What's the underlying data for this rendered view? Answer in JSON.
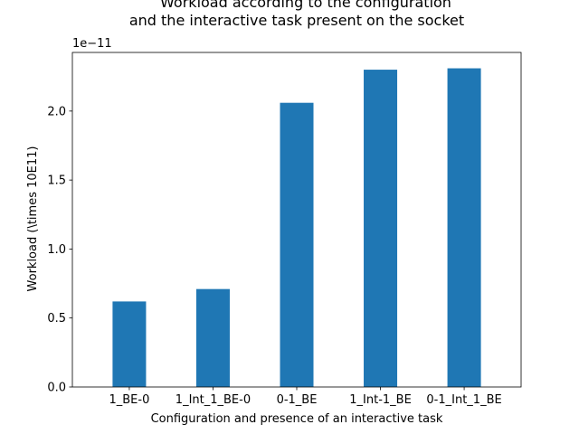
{
  "chart_data": {
    "type": "bar",
    "title_lines": [
      "Workload according  to the configuration",
      "and the interactive task present on the socket"
    ],
    "xlabel": "Configuration and presence of an interactive task",
    "ylabel": "Workload (\\times 10E11)",
    "offset_label": "1e−11",
    "categories": [
      "1_BE-0",
      "1_Int_1_BE-0",
      "0-1_BE",
      "1_Int-1_BE",
      "0-1_Int_1_BE"
    ],
    "values": [
      0.62,
      0.71,
      2.06,
      2.3,
      2.31
    ],
    "yticks": [
      0.0,
      0.5,
      1.0,
      1.5,
      2.0
    ],
    "ytick_labels": [
      "0.0",
      "0.5",
      "1.0",
      "1.5",
      "2.0"
    ],
    "ylim": [
      0,
      2.425
    ],
    "bar_color": "#1f77b4",
    "grid": false,
    "legend": "none"
  }
}
